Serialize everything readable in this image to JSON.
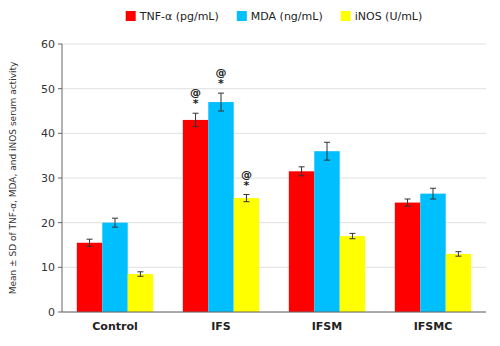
{
  "chart_data": {
    "type": "bar",
    "categories": [
      "Control",
      "IFS",
      "IFSM",
      "IFSMC"
    ],
    "series": [
      {
        "name": "TNF-α (pg/mL)",
        "color": "#ff0000",
        "values": [
          15.5,
          43.0,
          31.5,
          24.5
        ],
        "errors": [
          0.8,
          1.5,
          1.0,
          0.8
        ]
      },
      {
        "name": "MDA (ng/mL)",
        "color": "#00bfff",
        "values": [
          20.0,
          47.0,
          36.0,
          26.5
        ],
        "errors": [
          1.0,
          2.0,
          2.0,
          1.2
        ]
      },
      {
        "name": "iNOS (U/mL)",
        "color": "#ffff00",
        "values": [
          8.5,
          25.5,
          17.0,
          13.0
        ],
        "errors": [
          0.5,
          0.8,
          0.6,
          0.5
        ]
      }
    ],
    "ylabel": "Mean ± SD of TNF-α, MDA, and iNOS serum activity",
    "ylim": [
      0,
      60
    ],
    "yticks": [
      0,
      10,
      20,
      30,
      40,
      50,
      60
    ],
    "grid": true,
    "legend": "top",
    "annotations": [
      {
        "text": "*",
        "series": "TNF-α (pg/mL)",
        "category": "IFS"
      },
      {
        "text": "@",
        "series": "TNF-α (pg/mL)",
        "category": "IFS"
      },
      {
        "text": "*",
        "series": "MDA (ng/mL)",
        "category": "IFS"
      },
      {
        "text": "@",
        "series": "MDA (ng/mL)",
        "category": "IFS"
      },
      {
        "text": "*",
        "series": "iNOS (U/mL)",
        "category": "IFS"
      },
      {
        "text": "@",
        "series": "iNOS (U/mL)",
        "category": "IFS"
      }
    ]
  }
}
